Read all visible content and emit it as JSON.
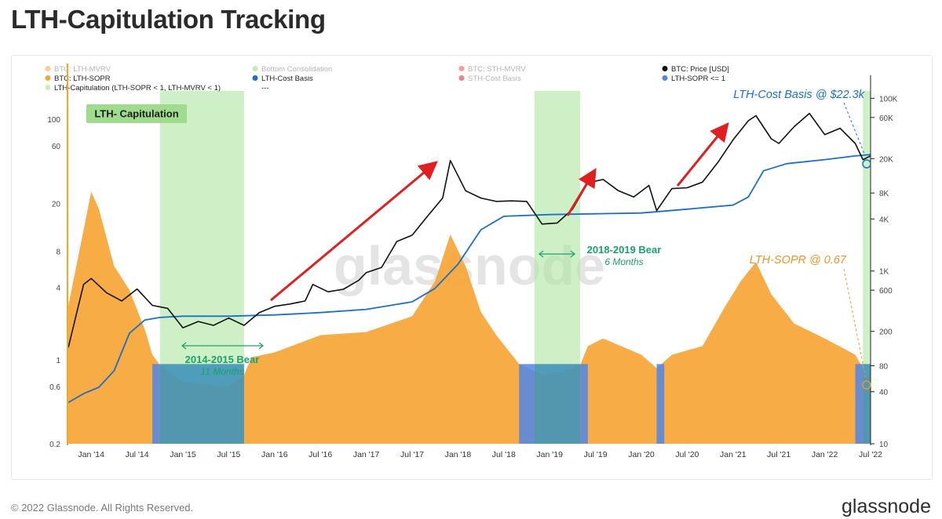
{
  "page": {
    "title": "LTH-Capitulation Tracking",
    "copyright": "© 2022 Glassnode. All Rights Reserved.",
    "brand": "glassnode"
  },
  "chart_data": {
    "type": "area",
    "watermark": "glassnode",
    "x_ticks": [
      "Jan '14",
      "Jul '14",
      "Jan '15",
      "Jul '15",
      "Jan '16",
      "Jul '16",
      "Jan '17",
      "Jul '17",
      "Jan '18",
      "Jul '18",
      "Jan '19",
      "Jul '19",
      "Jan '20",
      "Jul '20",
      "Jan '21",
      "Jul '21",
      "Jan '22",
      "Jul '22"
    ],
    "x_range": [
      "2013-10",
      "2022-07"
    ],
    "y_left": {
      "scale": "log",
      "range": [
        0.2,
        200
      ],
      "ticks": [
        "100",
        "60",
        "20",
        "8",
        "4",
        "1",
        "0.6",
        "0.2"
      ]
    },
    "y_right": {
      "scale": "log",
      "range": [
        10,
        150000
      ],
      "ticks": [
        "100K",
        "60K",
        "20K",
        "8K",
        "4K",
        "1K",
        "600",
        "200",
        "80",
        "40",
        "10"
      ]
    },
    "legend": [
      {
        "label": "BTC: LTH-MVRV",
        "color": "#f7a535",
        "muted": true
      },
      {
        "label": "Bottom Consolidation",
        "color": "#8fdc7c",
        "muted": true
      },
      {
        "label": "BTC: STH-MVRV",
        "color": "#ee4b4b",
        "muted": true
      },
      {
        "label": "BTC: Price [USD]",
        "color": "#111111",
        "muted": false
      },
      {
        "label": "BTC: LTH-SOPR",
        "color": "#f7a535",
        "muted": false
      },
      {
        "label": "LTH-Cost Basis",
        "color": "#1c6fc4",
        "muted": false
      },
      {
        "label": "STH-Cost Basis",
        "color": "#e02020",
        "muted": true
      },
      {
        "label": "LTH-SOPR <= 1",
        "color": "#4f86e8",
        "muted": false
      },
      {
        "label": "LTH-Capitulation (LTH-SOPR < 1, LTH-MVRV < 1)",
        "color": "#c9efc1",
        "muted": false
      },
      {
        "label": "---",
        "color": "",
        "muted": false
      }
    ],
    "badge": "LTH- Capitulation",
    "annotations": {
      "bear_2014": {
        "title": "2014-2015 Bear",
        "subtitle": "11 Months"
      },
      "bear_2018": {
        "title": "2018-2019 Bear",
        "subtitle": "6 Months"
      },
      "cost_basis": "LTH-Cost Basis @ $22.3k",
      "sopr": "LTH-SOPR @ 0.67"
    },
    "capitulation_periods": [
      [
        "2014-10",
        "2015-09"
      ],
      [
        "2018-11",
        "2019-05"
      ],
      [
        "2022-06",
        "2022-07"
      ]
    ],
    "series": [
      {
        "name": "BTC: Price [USD]",
        "color": "#111111",
        "unit": "USD",
        "points": [
          [
            "2013-10",
            130
          ],
          [
            "2013-12",
            700
          ],
          [
            "2014-01",
            820
          ],
          [
            "2014-03",
            560
          ],
          [
            "2014-05",
            450
          ],
          [
            "2014-07",
            620
          ],
          [
            "2014-09",
            400
          ],
          [
            "2014-11",
            370
          ],
          [
            "2015-01",
            220
          ],
          [
            "2015-03",
            260
          ],
          [
            "2015-05",
            235
          ],
          [
            "2015-07",
            285
          ],
          [
            "2015-09",
            235
          ],
          [
            "2015-11",
            330
          ],
          [
            "2016-01",
            390
          ],
          [
            "2016-03",
            415
          ],
          [
            "2016-05",
            450
          ],
          [
            "2016-06",
            700
          ],
          [
            "2016-08",
            575
          ],
          [
            "2016-10",
            615
          ],
          [
            "2016-12",
            780
          ],
          [
            "2017-01",
            960
          ],
          [
            "2017-03",
            1100
          ],
          [
            "2017-05",
            2200
          ],
          [
            "2017-07",
            2600
          ],
          [
            "2017-09",
            4300
          ],
          [
            "2017-11",
            7000
          ],
          [
            "2017-12",
            19000
          ],
          [
            "2018-02",
            8500
          ],
          [
            "2018-04",
            7000
          ],
          [
            "2018-06",
            6400
          ],
          [
            "2018-08",
            6500
          ],
          [
            "2018-10",
            6400
          ],
          [
            "2018-12",
            3500
          ],
          [
            "2019-02",
            3600
          ],
          [
            "2019-04",
            5200
          ],
          [
            "2019-06",
            10500
          ],
          [
            "2019-08",
            11500
          ],
          [
            "2019-10",
            8500
          ],
          [
            "2019-12",
            7200
          ],
          [
            "2020-02",
            9800
          ],
          [
            "2020-03",
            5000
          ],
          [
            "2020-05",
            9000
          ],
          [
            "2020-07",
            9200
          ],
          [
            "2020-09",
            10700
          ],
          [
            "2020-11",
            18000
          ],
          [
            "2021-01",
            33000
          ],
          [
            "2021-03",
            55000
          ],
          [
            "2021-04",
            63000
          ],
          [
            "2021-06",
            34000
          ],
          [
            "2021-07",
            30000
          ],
          [
            "2021-09",
            47000
          ],
          [
            "2021-11",
            67000
          ],
          [
            "2022-01",
            38000
          ],
          [
            "2022-03",
            45000
          ],
          [
            "2022-05",
            30000
          ],
          [
            "2022-06",
            19500
          ],
          [
            "2022-07",
            21500
          ]
        ]
      },
      {
        "name": "LTH-Cost Basis",
        "color": "#1c6fc4",
        "unit": "USD",
        "points": [
          [
            "2013-10",
            30
          ],
          [
            "2013-12",
            38
          ],
          [
            "2014-02",
            45
          ],
          [
            "2014-04",
            70
          ],
          [
            "2014-06",
            190
          ],
          [
            "2014-08",
            270
          ],
          [
            "2014-10",
            290
          ],
          [
            "2015-01",
            300
          ],
          [
            "2015-07",
            300
          ],
          [
            "2016-01",
            310
          ],
          [
            "2016-07",
            330
          ],
          [
            "2017-01",
            360
          ],
          [
            "2017-07",
            440
          ],
          [
            "2017-10",
            630
          ],
          [
            "2018-01",
            1200
          ],
          [
            "2018-04",
            3000
          ],
          [
            "2018-07",
            4300
          ],
          [
            "2019-01",
            4500
          ],
          [
            "2019-07",
            4600
          ],
          [
            "2020-01",
            4700
          ],
          [
            "2020-07",
            5200
          ],
          [
            "2021-01",
            5800
          ],
          [
            "2021-03",
            7200
          ],
          [
            "2021-05",
            14500
          ],
          [
            "2021-08",
            17500
          ],
          [
            "2022-01",
            19500
          ],
          [
            "2022-05",
            21500
          ],
          [
            "2022-07",
            22300
          ]
        ]
      },
      {
        "name": "BTC: LTH-SOPR",
        "color": "#f7a535",
        "unit": "ratio",
        "points": [
          [
            "2013-10",
            2.8
          ],
          [
            "2013-12",
            12
          ],
          [
            "2014-01",
            25
          ],
          [
            "2014-02",
            18
          ],
          [
            "2014-04",
            6
          ],
          [
            "2014-06",
            3.8
          ],
          [
            "2014-08",
            1.8
          ],
          [
            "2014-09",
            1.1
          ],
          [
            "2014-10",
            0.9
          ],
          [
            "2015-01",
            0.65
          ],
          [
            "2015-07",
            0.6
          ],
          [
            "2015-09",
            0.75
          ],
          [
            "2015-10",
            1.05
          ],
          [
            "2016-01",
            1.15
          ],
          [
            "2016-07",
            1.6
          ],
          [
            "2017-01",
            1.7
          ],
          [
            "2017-07",
            2.3
          ],
          [
            "2017-10",
            4.5
          ],
          [
            "2017-12",
            11
          ],
          [
            "2018-02",
            6
          ],
          [
            "2018-04",
            2.5
          ],
          [
            "2018-06",
            1.6
          ],
          [
            "2018-09",
            0.92
          ],
          [
            "2018-12",
            0.75
          ],
          [
            "2019-03",
            0.8
          ],
          [
            "2019-05",
            0.9
          ],
          [
            "2019-06",
            1.3
          ],
          [
            "2019-08",
            1.5
          ],
          [
            "2020-01",
            1.1
          ],
          [
            "2020-03",
            0.85
          ],
          [
            "2020-05",
            1.1
          ],
          [
            "2020-09",
            1.3
          ],
          [
            "2020-12",
            2.8
          ],
          [
            "2021-02",
            4.5
          ],
          [
            "2021-04",
            6.5
          ],
          [
            "2021-06",
            3.5
          ],
          [
            "2021-09",
            2
          ],
          [
            "2022-01",
            1.5
          ],
          [
            "2022-05",
            1.1
          ],
          [
            "2022-07",
            0.67
          ]
        ]
      }
    ]
  }
}
